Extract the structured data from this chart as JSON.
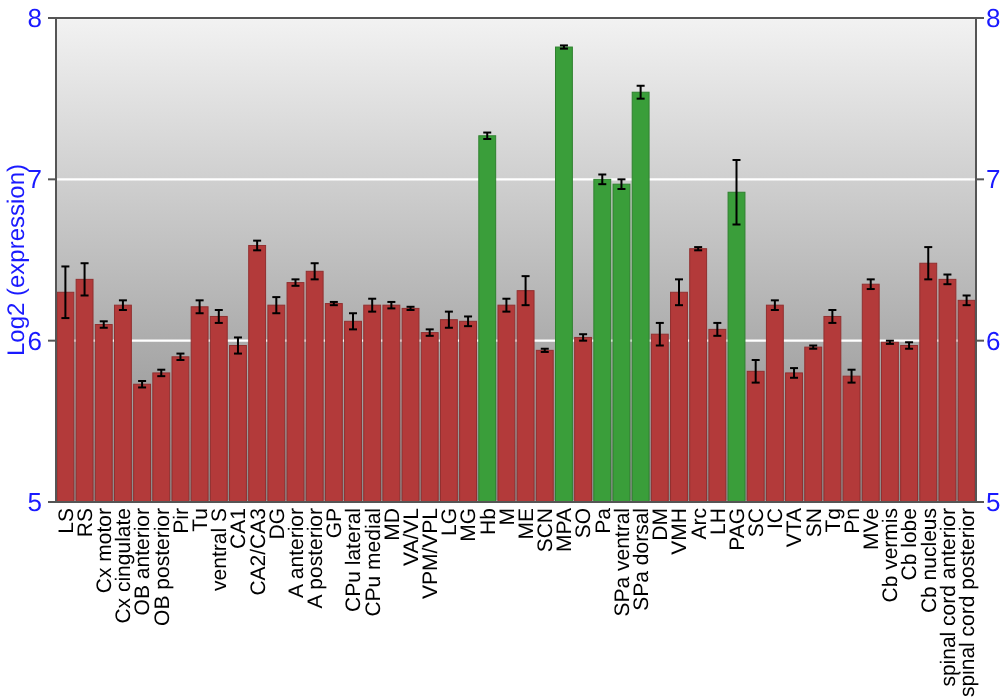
{
  "chart_data": {
    "type": "bar",
    "ylabel": "Log2 (expression)",
    "categories": [
      "LS",
      "RS",
      "Cx motor",
      "Cx cingulate",
      "OB anterior",
      "OB posterior",
      "Pir",
      "Tu",
      "ventral S",
      "CA1",
      "CA2/CA3",
      "DG",
      "A anterior",
      "A posterior",
      "GP",
      "CPu lateral",
      "CPu medial",
      "MD",
      "VA/VL",
      "VPM/VPL",
      "LG",
      "MG",
      "Hb",
      "M",
      "ME",
      "SCN",
      "MPA",
      "SO",
      "Pa",
      "SPa ventral",
      "SPa dorsal",
      "DM",
      "VMH",
      "Arc",
      "LH",
      "PAG",
      "SC",
      "IC",
      "VTA",
      "SN",
      "Tg",
      "Pn",
      "MVe",
      "Cb vermis",
      "Cb lobe",
      "Cb nucleus",
      "spinal cord anterior",
      "spinal cord posterior"
    ],
    "values": [
      6.3,
      6.38,
      6.1,
      6.22,
      5.73,
      5.8,
      5.9,
      6.21,
      6.15,
      5.97,
      6.59,
      6.22,
      6.36,
      6.43,
      6.23,
      6.12,
      6.22,
      6.22,
      6.2,
      6.05,
      6.13,
      6.12,
      7.27,
      6.22,
      6.31,
      5.94,
      7.82,
      6.02,
      7.0,
      6.97,
      7.54,
      6.04,
      6.3,
      6.57,
      6.07,
      6.92,
      5.81,
      6.22,
      5.8,
      5.96,
      6.15,
      5.78,
      6.35,
      5.99,
      5.97,
      6.48,
      6.38,
      6.25
    ],
    "errors": [
      0.16,
      0.1,
      0.02,
      0.03,
      0.02,
      0.02,
      0.02,
      0.04,
      0.04,
      0.05,
      0.03,
      0.05,
      0.02,
      0.05,
      0.01,
      0.05,
      0.04,
      0.02,
      0.01,
      0.02,
      0.05,
      0.03,
      0.02,
      0.04,
      0.09,
      0.01,
      0.01,
      0.02,
      0.03,
      0.03,
      0.04,
      0.07,
      0.08,
      0.01,
      0.04,
      0.2,
      0.07,
      0.03,
      0.03,
      0.01,
      0.04,
      0.04,
      0.03,
      0.01,
      0.02,
      0.1,
      0.03,
      0.03
    ],
    "colors": [
      "#b33a3a",
      "#b33a3a",
      "#b33a3a",
      "#b33a3a",
      "#b33a3a",
      "#b33a3a",
      "#b33a3a",
      "#b33a3a",
      "#b33a3a",
      "#b33a3a",
      "#b33a3a",
      "#b33a3a",
      "#b33a3a",
      "#b33a3a",
      "#b33a3a",
      "#b33a3a",
      "#b33a3a",
      "#b33a3a",
      "#b33a3a",
      "#b33a3a",
      "#b33a3a",
      "#b33a3a",
      "#3a9e3a",
      "#b33a3a",
      "#b33a3a",
      "#b33a3a",
      "#3a9e3a",
      "#b33a3a",
      "#3a9e3a",
      "#3a9e3a",
      "#3a9e3a",
      "#b33a3a",
      "#b33a3a",
      "#b33a3a",
      "#b33a3a",
      "#3a9e3a",
      "#b33a3a",
      "#b33a3a",
      "#b33a3a",
      "#b33a3a",
      "#b33a3a",
      "#b33a3a",
      "#b33a3a",
      "#b33a3a",
      "#b33a3a",
      "#b33a3a",
      "#b33a3a",
      "#b33a3a"
    ],
    "ylim": [
      5,
      8
    ],
    "yticks": [
      5,
      6,
      7,
      8
    ],
    "y2lim": [
      5,
      8
    ],
    "y2ticks": [
      5,
      6,
      7,
      8
    ],
    "grid": "y"
  }
}
